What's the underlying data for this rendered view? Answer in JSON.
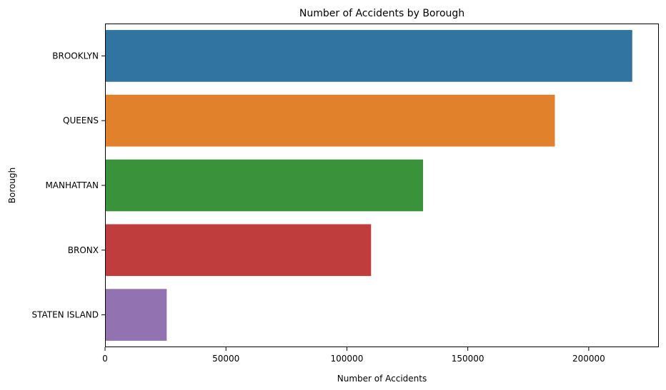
{
  "chart_data": {
    "type": "bar",
    "orientation": "horizontal",
    "title": "Number of Accidents by Borough",
    "xlabel": "Number of Accidents",
    "ylabel": "Borough",
    "categories": [
      "BROOKLYN",
      "QUEENS",
      "MANHATTAN",
      "BRONX",
      "STATEN ISLAND"
    ],
    "values": [
      218000,
      186000,
      131500,
      110000,
      25500
    ],
    "colors": [
      "#3274a1",
      "#e1812c",
      "#3a923a",
      "#c03d3e",
      "#9372b2"
    ],
    "xlim": [
      0,
      229000
    ],
    "xticks": [
      0,
      50000,
      100000,
      150000,
      200000
    ],
    "xtick_labels": [
      "0",
      "50000",
      "100000",
      "150000",
      "200000"
    ],
    "grid": false,
    "legend": "none"
  }
}
